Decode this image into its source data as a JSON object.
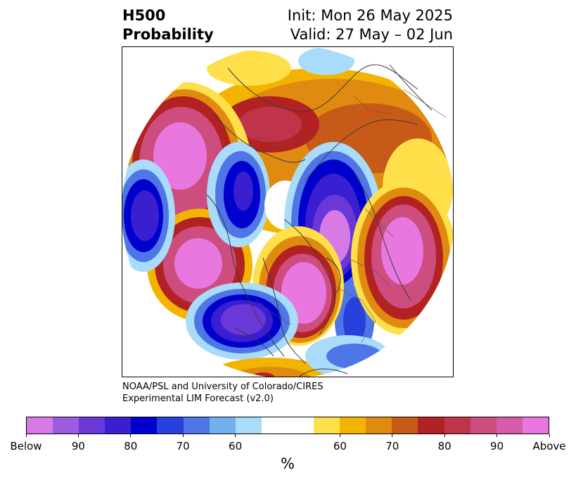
{
  "title": {
    "left_line1": "H500",
    "left_line2": "Probability",
    "right_line1": "Init: Mon 26 May 2025",
    "right_line2": "Valid: 27 May – 02 Jun"
  },
  "credit": {
    "line1": "NOAA/PSL and University of Colorado/CIRES",
    "line2": "Experimental LIM Forecast (v2.0)"
  },
  "colorbar": {
    "label": "%",
    "ticks": [
      "Below",
      "90",
      "80",
      "70",
      "60",
      "60",
      "70",
      "80",
      "90",
      "Above"
    ],
    "colors": [
      "#d87ae6",
      "#9c5ce0",
      "#6a38d6",
      "#3a1fd0",
      "#0000cc",
      "#2840dc",
      "#4e76e6",
      "#72b0f0",
      "#a8dcfa",
      "#ffffff",
      "#ffffff",
      "#ffe04a",
      "#f2b400",
      "#e08a10",
      "#c85a18",
      "#b22222",
      "#c0344a",
      "#cc4d7e",
      "#d85cae",
      "#e878e0"
    ]
  },
  "map": {
    "projection": "north-polar-stereographic",
    "below_color": "#0000cc",
    "above_color": "#d85cae"
  }
}
